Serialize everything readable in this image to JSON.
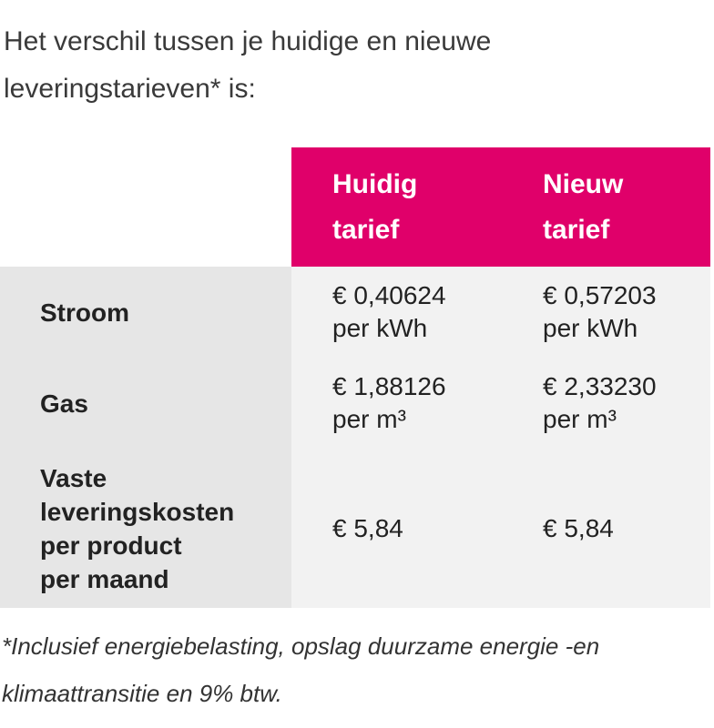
{
  "intro": [
    "Het verschil tussen je huidige en nieuwe",
    "leveringstarieven* is:"
  ],
  "table": {
    "header": [
      [
        "Huidig",
        "tarief"
      ],
      [
        "Nieuw",
        "tarief"
      ]
    ],
    "rows": [
      {
        "label": [
          "Stroom"
        ],
        "current": [
          "€ 0,40624",
          "per kWh"
        ],
        "new": [
          "€ 0,57203",
          "per kWh"
        ]
      },
      {
        "label": [
          "Gas"
        ],
        "current": [
          "€ 1,88126",
          "per m³"
        ],
        "new": [
          "€ 2,33230",
          "per m³"
        ]
      },
      {
        "label": [
          "Vaste",
          "leveringskosten",
          "per product",
          "per maand"
        ],
        "current": [
          "€ 5,84"
        ],
        "new": [
          "€ 5,84"
        ]
      }
    ]
  },
  "footnote": [
    "*Inclusief energiebelasting, opslag duurzame energie -en",
    "klimaattransitie en 9% btw."
  ]
}
